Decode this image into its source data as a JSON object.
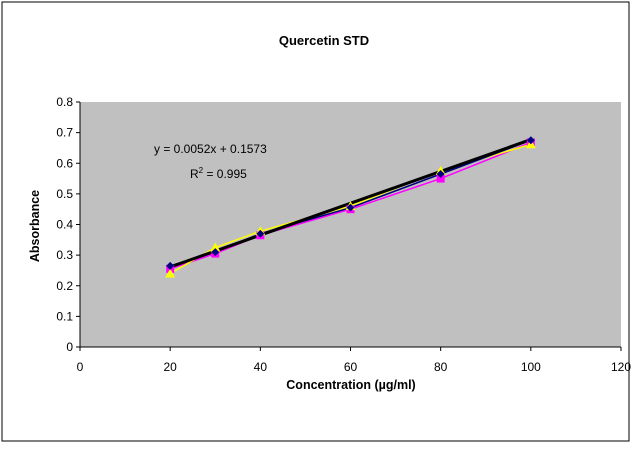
{
  "chart_data": {
    "type": "scatter",
    "title": "Quercetin STD",
    "xlabel": "Concentration (µg/ml)",
    "ylabel": "Absorbance",
    "xlim": [
      0,
      120
    ],
    "ylim": [
      0,
      0.8
    ],
    "xticks": [
      "0",
      "20",
      "40",
      "60",
      "80",
      "100",
      "120"
    ],
    "yticks": [
      "0",
      "0.1",
      "0.2",
      "0.3",
      "0.4",
      "0.5",
      "0.6",
      "0.7",
      "0.8"
    ],
    "grid": false,
    "plot_background": "#c0c0c0",
    "series": [
      {
        "color": "#ff00ff",
        "marker": "square",
        "x": [
          20,
          30,
          40,
          60,
          80,
          100
        ],
        "y": [
          0.255,
          0.305,
          0.365,
          0.45,
          0.55,
          0.668
        ]
      },
      {
        "color": "#ffff00",
        "marker": "triangle",
        "x": [
          20,
          30,
          40,
          60,
          80,
          100
        ],
        "y": [
          0.24,
          0.325,
          0.378,
          0.46,
          0.575,
          0.662
        ]
      },
      {
        "color": "#000080",
        "marker": "diamond",
        "x": [
          20,
          30,
          40,
          60,
          80,
          100
        ],
        "y": [
          0.265,
          0.31,
          0.37,
          0.455,
          0.565,
          0.675
        ]
      }
    ],
    "trendline": {
      "color": "#000000",
      "slope": 0.0052,
      "intercept": 0.1573,
      "x_range": [
        20,
        100
      ],
      "equation": "y = 0.0052x + 0.1573",
      "r2_label": "R",
      "r2_sup": "2",
      "r2_value": " = 0.995"
    }
  }
}
